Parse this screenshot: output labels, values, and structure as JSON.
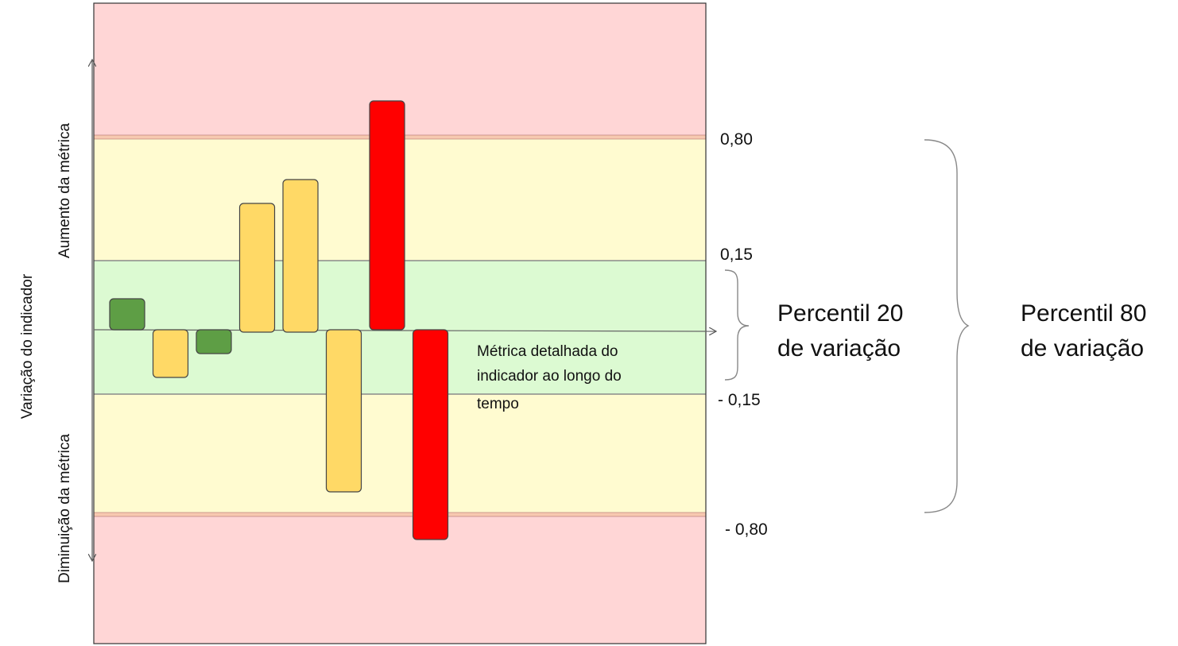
{
  "labels": {
    "y_axis": "Variação do indicador",
    "increase": "Aumento da métrica",
    "decrease": "Diminuição da métrica",
    "annotation_lines": [
      "Métrica detalhada do",
      "indicador ao longo do",
      "tempo"
    ]
  },
  "thresholds": [
    "0,80",
    "0,15",
    "- 0,15",
    "- 0,80"
  ],
  "brackets": {
    "p20": [
      "Percentil 20",
      "de variação"
    ],
    "p80": [
      "Percentil 80",
      "de variação"
    ]
  },
  "colors": {
    "zone_red": "#ffd6d6",
    "zone_yellow": "#fffbd0",
    "zone_green": "#dcfad2",
    "bar_green": "#5e9e45",
    "bar_yellow": "#ffd966",
    "bar_red": "#ff0000",
    "zone_border": "#f4a48a"
  },
  "chart_data": {
    "type": "bar",
    "bars": [
      {
        "color": "green",
        "from": 0,
        "to": 0.13
      },
      {
        "color": "yellow",
        "from": 0,
        "to": -0.2
      },
      {
        "color": "green",
        "from": 0,
        "to": -0.1
      },
      {
        "color": "yellow",
        "from": -0.01,
        "to": 0.53
      },
      {
        "color": "yellow",
        "from": -0.01,
        "to": 0.63
      },
      {
        "color": "yellow",
        "from": 0,
        "to": -0.68
      },
      {
        "color": "red",
        "from": 0,
        "to": 0.96
      },
      {
        "color": "red",
        "from": 0,
        "to": -0.88
      }
    ]
  }
}
